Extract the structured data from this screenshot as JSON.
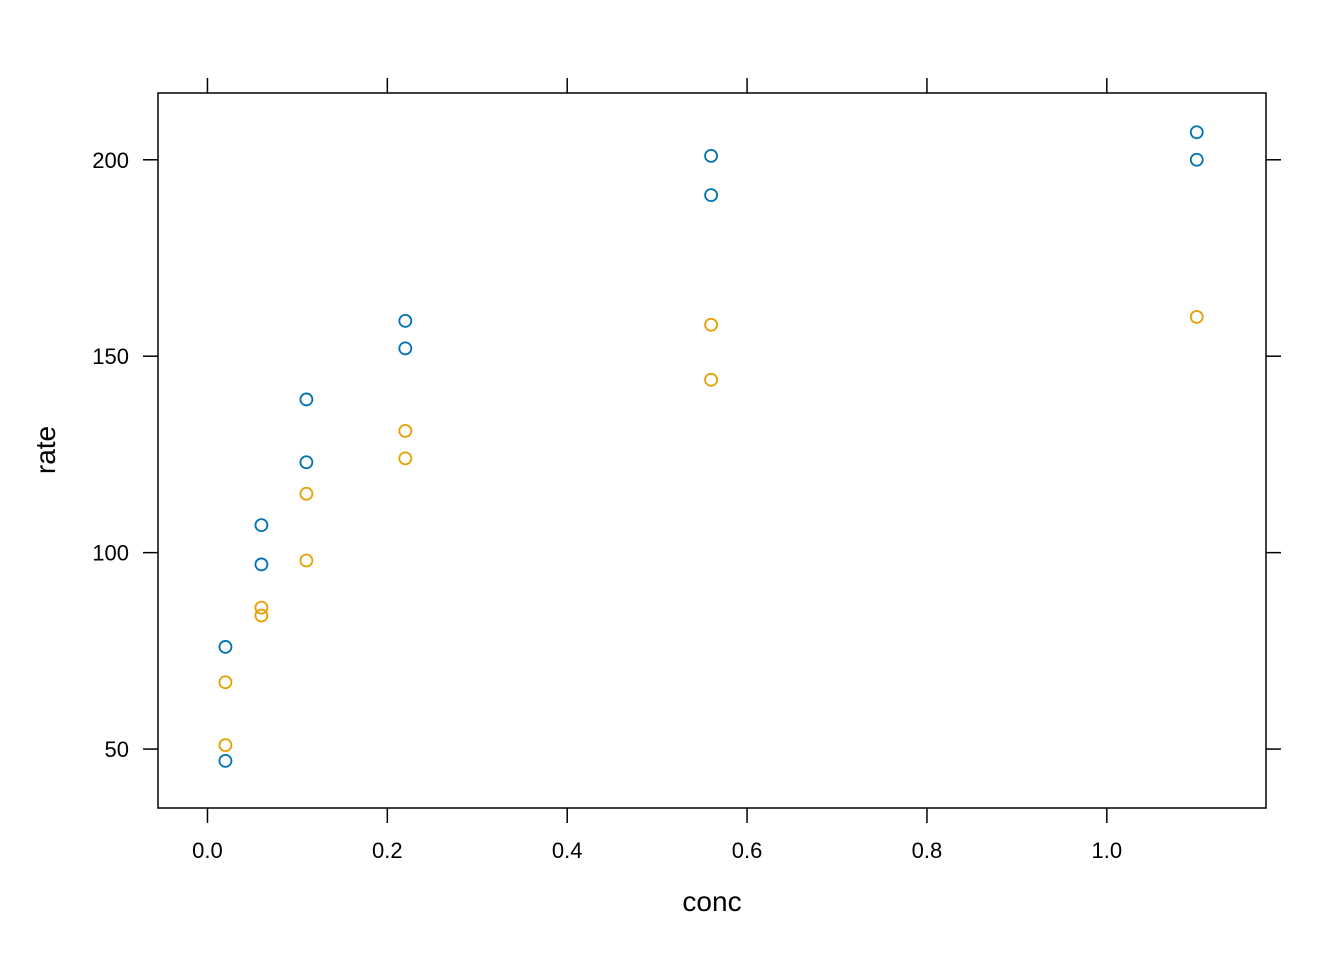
{
  "chart_data": {
    "type": "scatter",
    "title": "",
    "xlabel": "conc",
    "ylabel": "rate",
    "xlim": [
      -0.055,
      1.177
    ],
    "ylim": [
      35,
      217
    ],
    "xticks": [
      0.0,
      0.2,
      0.4,
      0.6,
      0.8,
      1.0
    ],
    "xtick_labels": [
      "0.0",
      "0.2",
      "0.4",
      "0.6",
      "0.8",
      "1.0"
    ],
    "yticks": [
      50,
      100,
      150,
      200
    ],
    "ytick_labels": [
      "50",
      "100",
      "150",
      "200"
    ],
    "grid": false,
    "marker": "open-circle",
    "series": [
      {
        "color": "#0072B2",
        "x": [
          0.02,
          0.02,
          0.06,
          0.06,
          0.11,
          0.11,
          0.22,
          0.22,
          0.56,
          0.56,
          1.1,
          1.1
        ],
        "y": [
          76,
          47,
          97,
          107,
          123,
          139,
          159,
          152,
          191,
          201,
          207,
          200
        ]
      },
      {
        "color": "#E69F00",
        "x": [
          0.02,
          0.02,
          0.06,
          0.06,
          0.11,
          0.11,
          0.22,
          0.22,
          0.56,
          0.56,
          1.1
        ],
        "y": [
          67,
          51,
          84,
          86,
          98,
          115,
          131,
          124,
          144,
          158,
          160
        ]
      }
    ]
  }
}
